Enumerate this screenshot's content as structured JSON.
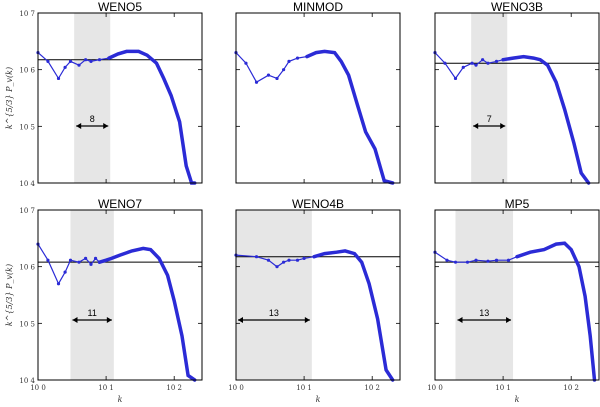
{
  "figure": {
    "ylabel_top": "k^{5/3} P_v(k)",
    "ylabel_bottom": "k^{5/3} P_v(k)",
    "xlabel": "k"
  },
  "chart_data": [
    {
      "type": "line",
      "title": "WENO5",
      "plateau": 1500000.0,
      "band": [
        3.4,
        11.5
      ],
      "annotation": "8",
      "curve": [
        [
          1,
          2000000.0
        ],
        [
          1.4,
          1400000.0
        ],
        [
          2,
          700000.0
        ],
        [
          2.5,
          1100000.0
        ],
        [
          3,
          1400000.0
        ],
        [
          4,
          1200000.0
        ],
        [
          5,
          1500000.0
        ],
        [
          6,
          1400000.0
        ],
        [
          8,
          1500000.0
        ],
        [
          11,
          1600000.0
        ],
        [
          15,
          1900000.0
        ],
        [
          20,
          2100000.0
        ],
        [
          30,
          2100000.0
        ],
        [
          40,
          1800000.0
        ],
        [
          55,
          1300000.0
        ],
        [
          70,
          700000.0
        ],
        [
          90,
          350000.0
        ],
        [
          120,
          120000.0
        ],
        [
          150,
          20000.0
        ],
        [
          180,
          6000
        ],
        [
          200,
          1000.0
        ]
      ],
      "xticks": [],
      "yticks": [
        "10^7",
        "10^6",
        "10^5",
        "10^4"
      ],
      "ylim": [
        10000.0,
        10000000.0
      ],
      "xlim": [
        1,
        256
      ]
    },
    {
      "type": "line",
      "title": "MINMOD",
      "plateau": null,
      "band": null,
      "annotation": "",
      "curve": [
        [
          1,
          2000000.0
        ],
        [
          1.4,
          1300000.0
        ],
        [
          2,
          600000.0
        ],
        [
          3,
          800000.0
        ],
        [
          4,
          700000.0
        ],
        [
          5,
          1000000.0
        ],
        [
          6,
          1400000.0
        ],
        [
          8,
          1600000.0
        ],
        [
          11,
          1700000.0
        ],
        [
          15,
          2000000.0
        ],
        [
          20,
          2100000.0
        ],
        [
          28,
          2000000.0
        ],
        [
          35,
          1400000.0
        ],
        [
          45,
          800000.0
        ],
        [
          60,
          250000.0
        ],
        [
          80,
          80000.0
        ],
        [
          110,
          40000.0
        ],
        [
          150,
          11000.0
        ],
        [
          200,
          2000.0
        ]
      ],
      "xticks": [],
      "yticks": [],
      "ylim": [
        10000.0,
        10000000.0
      ],
      "xlim": [
        1,
        256
      ]
    },
    {
      "type": "line",
      "title": "WENO3B",
      "plateau": 1300000.0,
      "band": [
        3.4,
        11.5
      ],
      "annotation": "7",
      "curve": [
        [
          1,
          2000000.0
        ],
        [
          1.4,
          1300000.0
        ],
        [
          2,
          700000.0
        ],
        [
          2.6,
          1100000.0
        ],
        [
          3.5,
          1300000.0
        ],
        [
          4,
          1200000.0
        ],
        [
          5,
          1500000.0
        ],
        [
          6,
          1300000.0
        ],
        [
          8,
          1400000.0
        ],
        [
          10,
          1500000.0
        ],
        [
          14,
          1600000.0
        ],
        [
          20,
          1700000.0
        ],
        [
          28,
          1600000.0
        ],
        [
          35,
          1500000.0
        ],
        [
          45,
          1200000.0
        ],
        [
          60,
          600000.0
        ],
        [
          80,
          200000.0
        ],
        [
          110,
          50000.0
        ],
        [
          140,
          15000.0
        ],
        [
          180,
          2000.0
        ]
      ],
      "xticks": [],
      "yticks": [],
      "ylim": [
        10000.0,
        10000000.0
      ],
      "xlim": [
        1,
        256
      ]
    },
    {
      "type": "line",
      "title": "WENO7",
      "plateau": 1200000.0,
      "band": [
        3.0,
        13.0
      ],
      "annotation": "11",
      "curve": [
        [
          1,
          2500000.0
        ],
        [
          1.4,
          1300000.0
        ],
        [
          2,
          500000.0
        ],
        [
          2.5,
          800000.0
        ],
        [
          3,
          1300000.0
        ],
        [
          4,
          1200000.0
        ],
        [
          5,
          1400000.0
        ],
        [
          6,
          1100000.0
        ],
        [
          7,
          1400000.0
        ],
        [
          8,
          1200000.0
        ],
        [
          10,
          1300000.0
        ],
        [
          12,
          1400000.0
        ],
        [
          16,
          1600000.0
        ],
        [
          24,
          1900000.0
        ],
        [
          35,
          2100000.0
        ],
        [
          45,
          2000000.0
        ],
        [
          60,
          1400000.0
        ],
        [
          80,
          700000.0
        ],
        [
          100,
          250000.0
        ],
        [
          130,
          60000.0
        ],
        [
          160,
          12000.0
        ],
        [
          200,
          2000.0
        ]
      ],
      "xticks": [
        "10^0",
        "10^1",
        "10^2"
      ],
      "yticks": [
        "10^7",
        "10^6",
        "10^5",
        "10^4"
      ],
      "ylim": [
        10000.0,
        10000000.0
      ],
      "xlim": [
        1,
        256
      ]
    },
    {
      "type": "line",
      "title": "WENO4B",
      "plateau": 1500000.0,
      "band": [
        1,
        13.0
      ],
      "annotation": "13",
      "curve": [
        [
          1,
          1600000.0
        ],
        [
          2,
          1500000.0
        ],
        [
          3,
          1300000.0
        ],
        [
          4,
          1000000.0
        ],
        [
          5,
          1200000.0
        ],
        [
          6,
          1300000.0
        ],
        [
          8,
          1300000.0
        ],
        [
          10,
          1400000.0
        ],
        [
          14,
          1500000.0
        ],
        [
          20,
          1700000.0
        ],
        [
          30,
          1800000.0
        ],
        [
          40,
          1900000.0
        ],
        [
          55,
          1700000.0
        ],
        [
          70,
          1200000.0
        ],
        [
          90,
          500000.0
        ],
        [
          120,
          120000.0
        ],
        [
          160,
          15000.0
        ],
        [
          200,
          2000.0
        ]
      ],
      "xticks": [
        "10^0",
        "10^1",
        "10^2"
      ],
      "yticks": [],
      "ylim": [
        10000.0,
        10000000.0
      ],
      "xlim": [
        1,
        256
      ]
    },
    {
      "type": "line",
      "title": "MP5",
      "plateau": 1200000.0,
      "band": [
        2.0,
        14.0
      ],
      "annotation": "13",
      "curve": [
        [
          1,
          1800000.0
        ],
        [
          1.5,
          1300000.0
        ],
        [
          2,
          1200000.0
        ],
        [
          3,
          1200000.0
        ],
        [
          4,
          1300000.0
        ],
        [
          6,
          1250000.0
        ],
        [
          8,
          1300000.0
        ],
        [
          12,
          1300000.0
        ],
        [
          16,
          1500000.0
        ],
        [
          25,
          1800000.0
        ],
        [
          40,
          2000000.0
        ],
        [
          60,
          2500000.0
        ],
        [
          80,
          2600000.0
        ],
        [
          100,
          2000000.0
        ],
        [
          130,
          1000000.0
        ],
        [
          160,
          300000.0
        ],
        [
          190,
          60000.0
        ],
        [
          220,
          6000.0
        ]
      ],
      "xticks": [
        "10^0",
        "10^1",
        "10^2"
      ],
      "yticks": [],
      "ylim": [
        10000.0,
        10000000.0
      ],
      "xlim": [
        1,
        256
      ]
    }
  ]
}
